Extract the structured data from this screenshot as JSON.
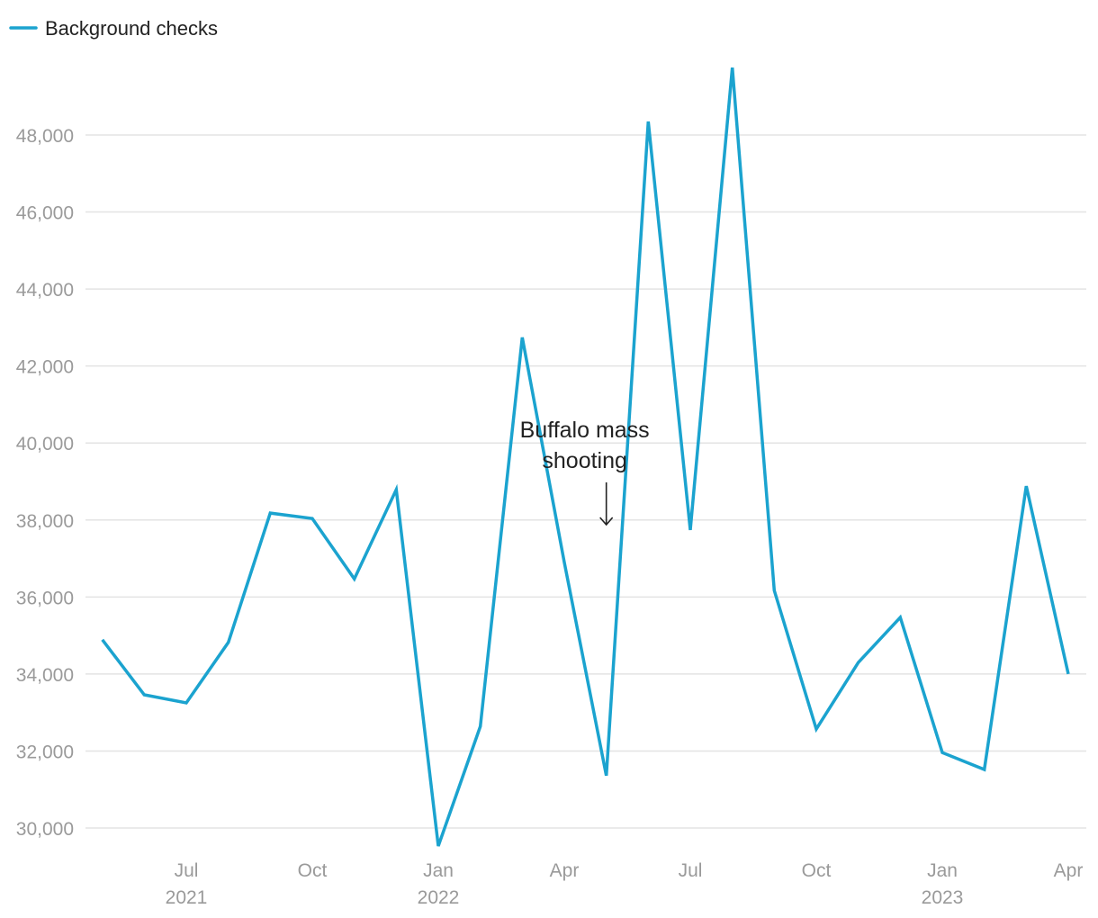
{
  "chart_data": {
    "type": "line",
    "title": "",
    "xlabel": "",
    "ylabel": "",
    "legend": {
      "position": "top-left",
      "entries": [
        "Background checks"
      ]
    },
    "grid": true,
    "ylim": [
      29500,
      50000
    ],
    "y_ticks": [
      30000,
      32000,
      34000,
      36000,
      38000,
      40000,
      42000,
      44000,
      46000,
      48000
    ],
    "y_tick_labels": [
      "30,000",
      "32,000",
      "34,000",
      "36,000",
      "38,000",
      "40,000",
      "42,000",
      "44,000",
      "46,000",
      "48,000"
    ],
    "x_ticks": [
      {
        "date": "2021-07",
        "label": "Jul",
        "year": "2021"
      },
      {
        "date": "2021-10",
        "label": "Oct",
        "year": ""
      },
      {
        "date": "2022-01",
        "label": "Jan",
        "year": "2022"
      },
      {
        "date": "2022-04",
        "label": "Apr",
        "year": ""
      },
      {
        "date": "2022-07",
        "label": "Jul",
        "year": ""
      },
      {
        "date": "2022-10",
        "label": "Oct",
        "year": ""
      },
      {
        "date": "2023-01",
        "label": "Jan",
        "year": "2023"
      },
      {
        "date": "2023-04",
        "label": "Apr",
        "year": ""
      }
    ],
    "color": "#1ba3cf",
    "series": [
      {
        "name": "Background checks",
        "x": [
          "2021-05",
          "2021-06",
          "2021-07",
          "2021-08",
          "2021-09",
          "2021-10",
          "2021-11",
          "2021-12",
          "2022-01",
          "2022-02",
          "2022-03",
          "2022-04",
          "2022-05",
          "2022-06",
          "2022-07",
          "2022-08",
          "2022-09",
          "2022-10",
          "2022-11",
          "2022-12",
          "2023-01",
          "2023-02",
          "2023-03",
          "2023-04"
        ],
        "values": [
          34890,
          33460,
          33250,
          34820,
          38180,
          38040,
          36470,
          38790,
          29530,
          32640,
          42740,
          36900,
          31360,
          48350,
          37740,
          49750,
          36170,
          32570,
          34300,
          35470,
          31960,
          31520,
          38880,
          34000
        ]
      }
    ],
    "annotations": [
      {
        "date": "2022-05",
        "lines": [
          "Buffalo mass",
          "shooting"
        ]
      }
    ]
  }
}
